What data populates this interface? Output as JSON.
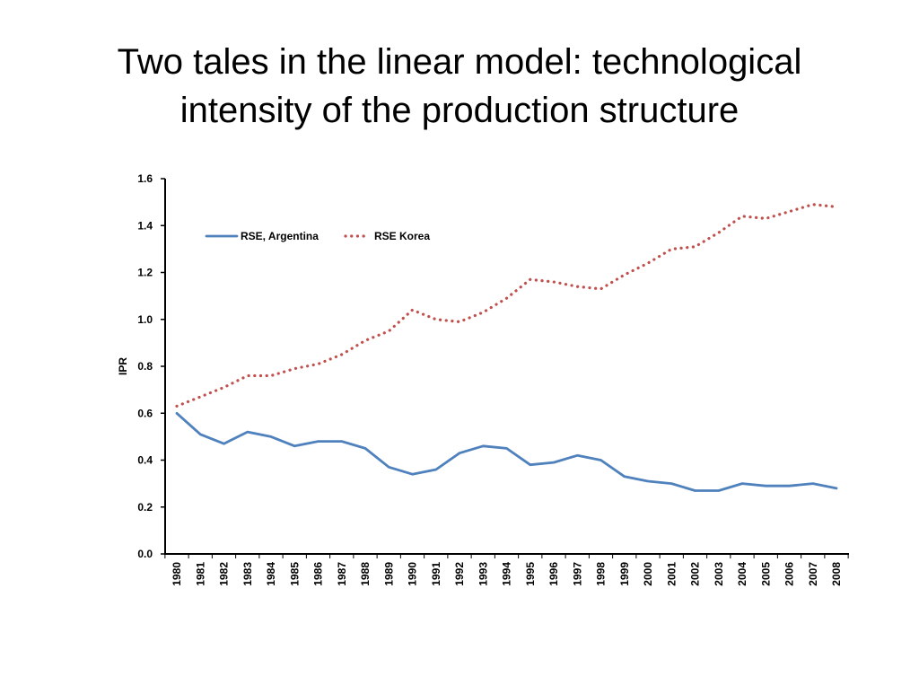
{
  "slide": {
    "title_line1": "Two tales in the linear model: technological",
    "title_line2": "intensity of the production structure"
  },
  "chart_data": {
    "type": "line",
    "title": "",
    "xlabel": "",
    "ylabel": "IPR",
    "ylim": [
      0,
      1.6
    ],
    "yticks": [
      "0.0",
      "0.2",
      "0.4",
      "0.6",
      "0.8",
      "1.0",
      "1.2",
      "1.4",
      "1.6"
    ],
    "categories": [
      "1980",
      "1981",
      "1982",
      "1983",
      "1984",
      "1985",
      "1986",
      "1987",
      "1988",
      "1989",
      "1990",
      "1991",
      "1992",
      "1993",
      "1994",
      "1995",
      "1996",
      "1997",
      "1998",
      "1999",
      "2000",
      "2001",
      "2002",
      "2003",
      "2004",
      "2005",
      "2006",
      "2007",
      "2008"
    ],
    "grid": false,
    "legend_position": "top-left",
    "series": [
      {
        "name": "RSE, Argentina",
        "color": "#4F81BD",
        "style": "solid",
        "values": [
          0.6,
          0.51,
          0.47,
          0.52,
          0.5,
          0.46,
          0.48,
          0.48,
          0.45,
          0.37,
          0.34,
          0.36,
          0.43,
          0.46,
          0.45,
          0.38,
          0.39,
          0.42,
          0.4,
          0.33,
          0.31,
          0.3,
          0.27,
          0.27,
          0.3,
          0.29,
          0.29,
          0.3,
          0.28
        ]
      },
      {
        "name": "RSE Korea",
        "color": "#C0504D",
        "style": "dotted",
        "values": [
          0.63,
          0.67,
          0.71,
          0.76,
          0.76,
          0.79,
          0.81,
          0.85,
          0.91,
          0.95,
          1.04,
          1.0,
          0.99,
          1.03,
          1.09,
          1.17,
          1.16,
          1.14,
          1.13,
          1.19,
          1.24,
          1.3,
          1.31,
          1.37,
          1.44,
          1.43,
          1.46,
          1.49,
          1.48
        ]
      }
    ]
  }
}
